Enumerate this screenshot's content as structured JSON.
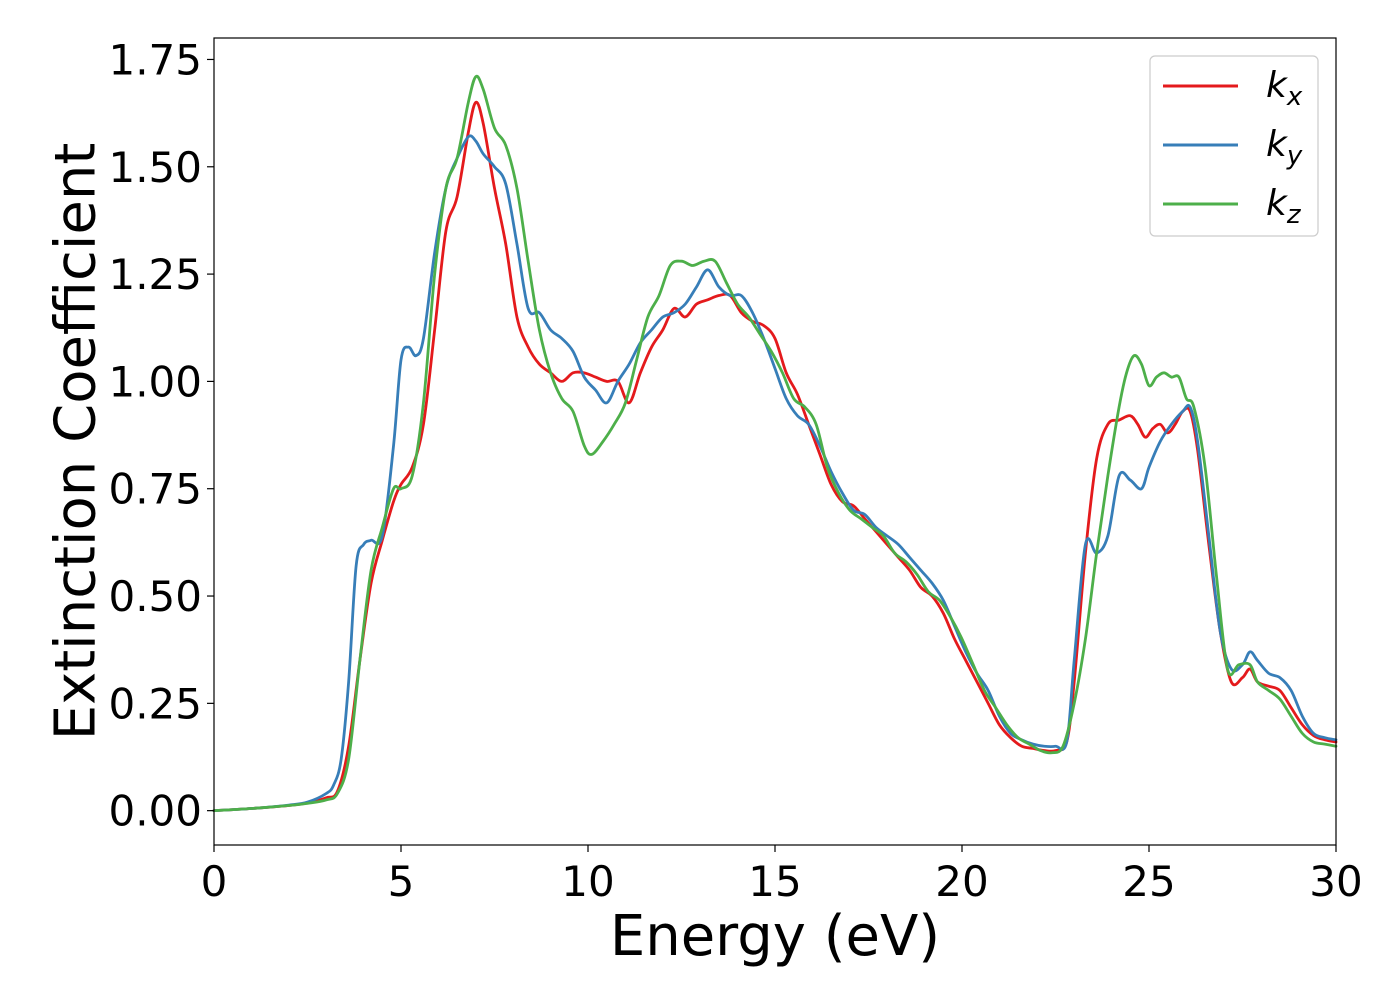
{
  "chart_data": {
    "type": "line",
    "xlabel": "Energy (eV)",
    "ylabel": "Extinction Coefficient",
    "xlim": [
      0,
      30
    ],
    "ylim": [
      -0.08,
      1.8
    ],
    "xticks": [
      0,
      5,
      10,
      15,
      20,
      25,
      30
    ],
    "xtick_labels": [
      "0",
      "5",
      "10",
      "15",
      "20",
      "25",
      "30"
    ],
    "yticks": [
      0,
      0.25,
      0.5,
      0.75,
      1.0,
      1.25,
      1.5,
      1.75
    ],
    "ytick_labels": [
      "0.00",
      "0.25",
      "0.50",
      "0.75",
      "1.00",
      "1.25",
      "1.50",
      "1.75"
    ],
    "grid": false,
    "legend_position": "top-right",
    "series": [
      {
        "name": "k",
        "subscript": "x",
        "color": "#e41a1c",
        "x": [
          0,
          1,
          2,
          2.5,
          3,
          3.3,
          3.6,
          3.9,
          4.2,
          4.5,
          4.8,
          5.0,
          5.3,
          5.6,
          5.9,
          6.2,
          6.5,
          6.8,
          7.0,
          7.2,
          7.5,
          7.8,
          8.1,
          8.4,
          8.7,
          9.0,
          9.3,
          9.6,
          9.9,
          10.2,
          10.5,
          10.8,
          11.1,
          11.4,
          11.7,
          12.0,
          12.3,
          12.6,
          12.9,
          13.2,
          13.5,
          13.8,
          14.1,
          14.4,
          14.7,
          15.0,
          15.3,
          15.6,
          15.9,
          16.2,
          16.5,
          16.8,
          17.1,
          17.4,
          17.7,
          18.0,
          18.3,
          18.6,
          18.9,
          19.2,
          19.5,
          19.8,
          20.1,
          20.4,
          20.7,
          21.0,
          21.3,
          21.6,
          21.9,
          22.2,
          22.5,
          22.8,
          23.0,
          23.3,
          23.6,
          23.9,
          24.2,
          24.5,
          24.7,
          24.9,
          25.1,
          25.3,
          25.5,
          25.7,
          25.9,
          26.1,
          26.3,
          26.6,
          26.9,
          27.2,
          27.5,
          27.7,
          27.9,
          28.2,
          28.5,
          28.8,
          29.1,
          29.4,
          29.7,
          30.0
        ],
        "values": [
          0.0,
          0.005,
          0.012,
          0.018,
          0.03,
          0.045,
          0.15,
          0.35,
          0.53,
          0.63,
          0.72,
          0.76,
          0.8,
          0.9,
          1.12,
          1.35,
          1.43,
          1.58,
          1.65,
          1.6,
          1.45,
          1.32,
          1.15,
          1.08,
          1.04,
          1.02,
          1.0,
          1.02,
          1.02,
          1.01,
          1.0,
          1.0,
          0.95,
          1.02,
          1.08,
          1.12,
          1.17,
          1.15,
          1.18,
          1.19,
          1.2,
          1.2,
          1.16,
          1.14,
          1.13,
          1.1,
          1.02,
          0.97,
          0.9,
          0.83,
          0.76,
          0.72,
          0.71,
          0.68,
          0.65,
          0.62,
          0.59,
          0.56,
          0.52,
          0.5,
          0.46,
          0.4,
          0.35,
          0.3,
          0.25,
          0.2,
          0.17,
          0.15,
          0.145,
          0.14,
          0.14,
          0.16,
          0.3,
          0.6,
          0.82,
          0.9,
          0.91,
          0.92,
          0.9,
          0.87,
          0.89,
          0.9,
          0.88,
          0.9,
          0.93,
          0.93,
          0.84,
          0.62,
          0.42,
          0.3,
          0.31,
          0.33,
          0.3,
          0.29,
          0.28,
          0.24,
          0.2,
          0.175,
          0.165,
          0.16
        ]
      },
      {
        "name": "k",
        "subscript": "y",
        "color": "#377eb8",
        "x": [
          0,
          1,
          2,
          2.5,
          3,
          3.2,
          3.4,
          3.6,
          3.8,
          4.0,
          4.2,
          4.5,
          4.8,
          5.0,
          5.2,
          5.4,
          5.6,
          5.9,
          6.2,
          6.5,
          6.8,
          7.0,
          7.2,
          7.5,
          7.8,
          8.1,
          8.4,
          8.7,
          9.0,
          9.3,
          9.6,
          9.9,
          10.2,
          10.5,
          10.8,
          11.1,
          11.4,
          11.7,
          12.0,
          12.3,
          12.6,
          12.9,
          13.2,
          13.5,
          13.8,
          14.1,
          14.4,
          14.7,
          15.0,
          15.3,
          15.6,
          15.9,
          16.2,
          16.5,
          16.8,
          17.1,
          17.4,
          17.7,
          18.0,
          18.3,
          18.6,
          18.9,
          19.2,
          19.5,
          19.8,
          20.1,
          20.4,
          20.7,
          21.0,
          21.3,
          21.6,
          21.9,
          22.2,
          22.5,
          22.8,
          23.0,
          23.3,
          23.6,
          23.9,
          24.2,
          24.5,
          24.8,
          25.0,
          25.3,
          25.6,
          25.9,
          26.1,
          26.3,
          26.6,
          26.9,
          27.2,
          27.5,
          27.7,
          27.9,
          28.2,
          28.5,
          28.8,
          29.1,
          29.4,
          29.7,
          30.0
        ],
        "values": [
          0.0,
          0.005,
          0.013,
          0.02,
          0.04,
          0.06,
          0.12,
          0.3,
          0.57,
          0.62,
          0.63,
          0.64,
          0.85,
          1.05,
          1.08,
          1.06,
          1.1,
          1.3,
          1.45,
          1.52,
          1.57,
          1.56,
          1.53,
          1.5,
          1.46,
          1.32,
          1.17,
          1.16,
          1.12,
          1.1,
          1.07,
          1.01,
          0.98,
          0.95,
          1.0,
          1.04,
          1.09,
          1.12,
          1.15,
          1.16,
          1.18,
          1.22,
          1.26,
          1.22,
          1.2,
          1.2,
          1.16,
          1.1,
          1.03,
          0.96,
          0.92,
          0.9,
          0.85,
          0.79,
          0.74,
          0.7,
          0.69,
          0.66,
          0.64,
          0.62,
          0.59,
          0.56,
          0.53,
          0.49,
          0.43,
          0.37,
          0.32,
          0.28,
          0.22,
          0.18,
          0.165,
          0.155,
          0.15,
          0.15,
          0.16,
          0.35,
          0.62,
          0.6,
          0.64,
          0.78,
          0.77,
          0.75,
          0.8,
          0.86,
          0.9,
          0.93,
          0.94,
          0.86,
          0.64,
          0.42,
          0.33,
          0.34,
          0.37,
          0.35,
          0.32,
          0.31,
          0.28,
          0.22,
          0.18,
          0.17,
          0.165
        ]
      },
      {
        "name": "k",
        "subscript": "z",
        "color": "#4daf4a",
        "x": [
          0,
          1,
          2,
          2.5,
          3,
          3.3,
          3.6,
          3.9,
          4.2,
          4.5,
          4.8,
          5.0,
          5.3,
          5.6,
          5.9,
          6.2,
          6.5,
          6.8,
          7.0,
          7.2,
          7.5,
          7.8,
          8.1,
          8.4,
          8.7,
          9.0,
          9.3,
          9.6,
          9.9,
          10.1,
          10.4,
          10.7,
          11.0,
          11.3,
          11.6,
          11.9,
          12.2,
          12.5,
          12.8,
          13.1,
          13.4,
          13.7,
          14.0,
          14.3,
          14.6,
          14.9,
          15.2,
          15.5,
          15.8,
          16.1,
          16.4,
          16.7,
          17.0,
          17.3,
          17.6,
          17.9,
          18.2,
          18.5,
          18.8,
          19.1,
          19.4,
          19.7,
          20.0,
          20.3,
          20.6,
          20.9,
          21.2,
          21.5,
          21.8,
          22.1,
          22.4,
          22.7,
          23.0,
          23.3,
          23.6,
          23.9,
          24.2,
          24.4,
          24.6,
          24.8,
          25.0,
          25.2,
          25.4,
          25.6,
          25.8,
          26.0,
          26.2,
          26.5,
          26.8,
          27.1,
          27.4,
          27.7,
          27.9,
          28.2,
          28.5,
          28.8,
          29.1,
          29.4,
          29.7,
          30.0
        ],
        "values": [
          0.0,
          0.005,
          0.012,
          0.017,
          0.025,
          0.04,
          0.12,
          0.35,
          0.56,
          0.66,
          0.75,
          0.75,
          0.78,
          0.95,
          1.25,
          1.45,
          1.52,
          1.65,
          1.71,
          1.68,
          1.59,
          1.55,
          1.45,
          1.28,
          1.12,
          1.02,
          0.96,
          0.93,
          0.85,
          0.83,
          0.86,
          0.9,
          0.95,
          1.05,
          1.15,
          1.2,
          1.27,
          1.28,
          1.27,
          1.28,
          1.28,
          1.23,
          1.18,
          1.15,
          1.11,
          1.07,
          1.02,
          0.96,
          0.94,
          0.9,
          0.8,
          0.74,
          0.7,
          0.68,
          0.66,
          0.64,
          0.6,
          0.58,
          0.55,
          0.51,
          0.49,
          0.45,
          0.4,
          0.34,
          0.28,
          0.24,
          0.2,
          0.17,
          0.155,
          0.14,
          0.135,
          0.15,
          0.25,
          0.4,
          0.6,
          0.78,
          0.94,
          1.02,
          1.06,
          1.04,
          0.99,
          1.01,
          1.02,
          1.01,
          1.01,
          0.96,
          0.94,
          0.8,
          0.55,
          0.33,
          0.34,
          0.34,
          0.3,
          0.28,
          0.26,
          0.22,
          0.18,
          0.16,
          0.155,
          0.15
        ]
      }
    ]
  }
}
